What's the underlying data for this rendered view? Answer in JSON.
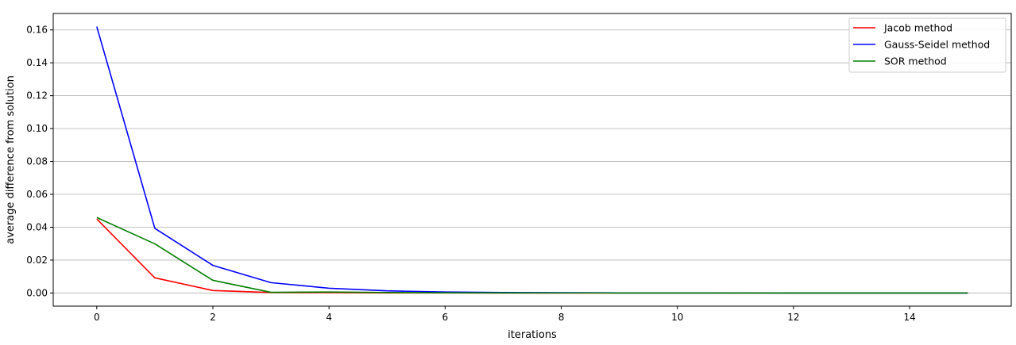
{
  "chart_data": {
    "type": "line",
    "title": "",
    "xlabel": "iterations",
    "ylabel": "average difference from solution",
    "xlim": [
      -0.75,
      15.75
    ],
    "ylim": [
      -0.008,
      0.17
    ],
    "xticks": [
      0,
      2,
      4,
      6,
      8,
      10,
      12,
      14
    ],
    "xtick_labels": [
      "0",
      "2",
      "4",
      "6",
      "8",
      "10",
      "12",
      "14"
    ],
    "yticks": [
      0.0,
      0.02,
      0.04,
      0.06,
      0.08,
      0.1,
      0.12,
      0.14,
      0.16
    ],
    "ytick_labels": [
      "0.00",
      "0.02",
      "0.04",
      "0.06",
      "0.08",
      "0.10",
      "0.12",
      "0.14",
      "0.16"
    ],
    "grid": "horizontal",
    "legend_position": "top-right",
    "x": [
      0,
      1,
      2,
      3,
      4,
      5,
      6,
      7,
      8,
      9,
      10,
      11,
      12,
      13,
      14,
      15
    ],
    "series": [
      {
        "name": "Jacob method",
        "color": "#ff0000",
        "values": [
          0.045,
          0.0092,
          0.0015,
          0.0003,
          0.0002,
          5e-05,
          2e-05,
          1e-05,
          0,
          0,
          0,
          0,
          0,
          0,
          0,
          0
        ]
      },
      {
        "name": "Gauss-Seidel method",
        "color": "#0000ff",
        "values": [
          0.162,
          0.0393,
          0.0168,
          0.0063,
          0.0029,
          0.0013,
          0.0006,
          0.0003,
          0.00015,
          7e-05,
          4e-05,
          2e-05,
          1e-05,
          0,
          0,
          0
        ]
      },
      {
        "name": "SOR method",
        "color": "#008000",
        "values": [
          0.0459,
          0.0299,
          0.0077,
          0.0004,
          0.0006,
          0.0003,
          0.0001,
          5e-05,
          2e-05,
          1e-05,
          0,
          0,
          0,
          0,
          0,
          0
        ]
      }
    ]
  }
}
